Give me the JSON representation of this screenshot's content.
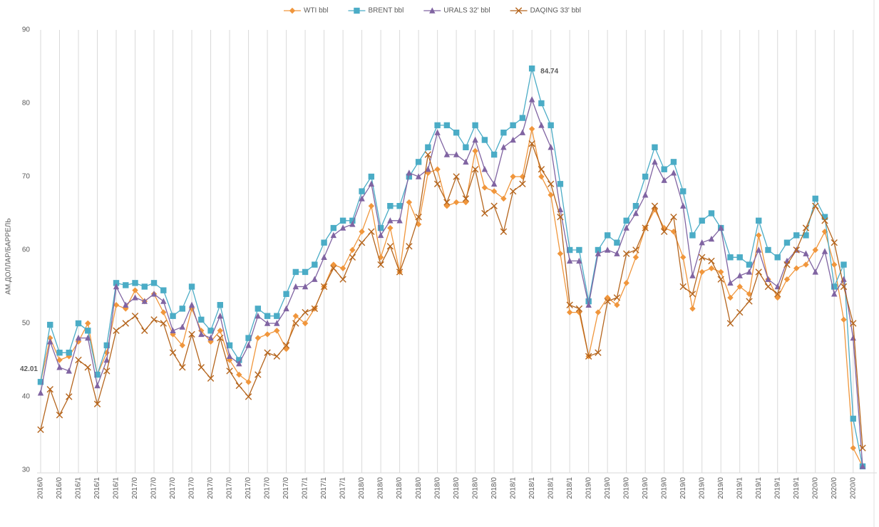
{
  "chart_data": {
    "type": "line",
    "y_label": "АМ.ДОЛЛАР/БАРРЕЛЬ",
    "annotations": [
      "84.74",
      "42.01"
    ],
    "categories": [
      "2016/0",
      null,
      "2016/0",
      null,
      "2016/1",
      null,
      "2016/1",
      null,
      "2016/1",
      null,
      "2017/0",
      null,
      "2017/0",
      null,
      "2017/0",
      null,
      "2017/0",
      null,
      "2017/0",
      null,
      "2017/0",
      null,
      "2017/0",
      null,
      "2017/0",
      null,
      "2017/0",
      null,
      "2017/1",
      null,
      "2017/1",
      null,
      "2017/1",
      null,
      "2018/0",
      null,
      "2018/0",
      null,
      "2018/0",
      null,
      "2018/0",
      null,
      "2018/0",
      null,
      "2018/0",
      null,
      "2018/0",
      null,
      "2018/0",
      null,
      "2018/1",
      null,
      "2018/1",
      null,
      "2018/1",
      null,
      "2018/1",
      null,
      "2019/0",
      null,
      "2019/0",
      null,
      "2019/0",
      null,
      "2019/0",
      null,
      "2019/0",
      null,
      "2019/0",
      null,
      "2019/0",
      null,
      "2019/0",
      null,
      "2019/1",
      null,
      "2019/1",
      null,
      "2019/1",
      null,
      "2019/1",
      null,
      "2020/0",
      null,
      "2020/0",
      null,
      "2020/0",
      null
    ],
    "series": [
      {
        "name": "WTI bbl",
        "color": "#f0963c",
        "marker": "diamond",
        "values": [
          42,
          48,
          45,
          45.5,
          47.5,
          50,
          43,
          46,
          52.5,
          52,
          54.5,
          53,
          54,
          51.5,
          48.5,
          47,
          52,
          49,
          47.5,
          49,
          45,
          43,
          42,
          48,
          48.5,
          49,
          46.5,
          51,
          50,
          52,
          55,
          58,
          57.5,
          60,
          62.5,
          66,
          59,
          63,
          57,
          66.5,
          63.5,
          70.5,
          71,
          66,
          66.5,
          66.5,
          73.5,
          68.5,
          68,
          67,
          70,
          70,
          76.5,
          70,
          67.5,
          59.5,
          51.5,
          51.5,
          45.5,
          51.5,
          53.5,
          52.5,
          55.5,
          59,
          63,
          65.5,
          63,
          62.5,
          59,
          52,
          57,
          57.5,
          57,
          53.5,
          55,
          54,
          62,
          56,
          53.5,
          56,
          57.5,
          58,
          60,
          62.5,
          58,
          50.5,
          33,
          30.5
        ]
      },
      {
        "name": "BRENT bbl",
        "color": "#4bacc6",
        "marker": "square",
        "values": [
          42.01,
          49.8,
          46,
          46,
          50,
          49,
          43,
          47,
          55.5,
          55.2,
          55.5,
          55,
          55.5,
          54.5,
          51,
          52,
          55,
          50.5,
          49,
          52.5,
          47,
          45,
          48,
          52,
          51,
          51,
          54,
          57,
          57,
          58,
          61,
          63,
          64,
          64,
          68,
          70,
          63,
          66,
          66,
          70,
          72,
          74,
          77,
          77,
          76,
          74,
          77,
          75,
          73,
          76,
          77,
          78,
          84.74,
          80,
          77,
          69,
          60,
          60,
          53,
          60,
          62,
          61,
          64,
          66,
          70,
          74,
          71,
          72,
          68,
          62,
          64,
          65,
          63,
          59,
          59,
          58,
          64,
          60,
          59,
          61,
          62,
          62,
          67,
          64.5,
          55,
          58,
          37,
          30.5
        ]
      },
      {
        "name": "URALS 32' bbl",
        "color": "#8064a2",
        "marker": "triangle",
        "values": [
          40.5,
          47.5,
          44,
          43.5,
          48,
          48,
          41.5,
          45,
          55,
          52.5,
          53.5,
          53,
          54,
          53,
          49,
          49.5,
          52.5,
          48.5,
          48,
          51,
          45.5,
          44.5,
          47,
          51,
          50,
          50,
          52,
          55,
          55,
          56,
          59,
          62,
          63,
          63.5,
          67,
          69,
          62,
          64,
          64,
          70.5,
          70,
          71,
          76,
          73,
          73,
          72,
          75,
          71,
          69,
          74,
          75,
          76,
          80.5,
          77,
          74,
          65.5,
          58.5,
          58.5,
          52.5,
          59.5,
          60,
          59.5,
          63,
          65,
          67.5,
          72,
          69.5,
          70.5,
          66,
          56.5,
          61,
          61.5,
          63,
          55.5,
          56.5,
          57,
          60,
          56,
          55,
          58.5,
          60,
          59.5,
          57,
          59.8,
          54,
          56,
          48,
          30.5
        ]
      },
      {
        "name": "DAQING 33' bbl",
        "color": "#b5651d",
        "marker": "x",
        "values": [
          35.5,
          41,
          37.5,
          40,
          45,
          44,
          39,
          43.5,
          49,
          50,
          51,
          49,
          50.5,
          50,
          46,
          44,
          48.5,
          44,
          42.5,
          48,
          43.5,
          41.5,
          40,
          43,
          46,
          45.5,
          47,
          50,
          51.5,
          52,
          55,
          57.5,
          56,
          59,
          61,
          62.5,
          58,
          60.5,
          57,
          60.5,
          64.5,
          73,
          69,
          66.5,
          70,
          67,
          71,
          65,
          66,
          62.5,
          68,
          69,
          74.5,
          71,
          69,
          64.5,
          52.5,
          52,
          45.5,
          46,
          53,
          53.5,
          59.5,
          60,
          63,
          66,
          62.5,
          64.5,
          55,
          54,
          59,
          58.5,
          56,
          50,
          51.5,
          53,
          57,
          55,
          54,
          58,
          60,
          63,
          66,
          64,
          61,
          55,
          50,
          33
        ]
      }
    ],
    "ylim": [
      30,
      90
    ],
    "yticks": [
      30,
      40,
      50,
      60,
      70,
      80,
      90
    ],
    "grid": "x",
    "legend": "top"
  }
}
